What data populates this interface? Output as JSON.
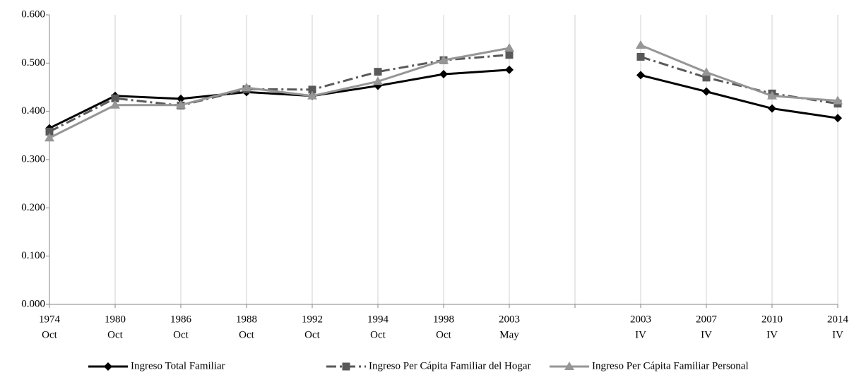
{
  "chart_data": {
    "type": "line",
    "categories": [
      [
        "1974",
        "Oct"
      ],
      [
        "1980",
        "Oct"
      ],
      [
        "1986",
        "Oct"
      ],
      [
        "1988",
        "Oct"
      ],
      [
        "1992",
        "Oct"
      ],
      [
        "1994",
        "Oct"
      ],
      [
        "1998",
        "Oct"
      ],
      [
        "2003",
        "May"
      ],
      null,
      [
        "2003",
        "IV"
      ],
      [
        "2007",
        "IV"
      ],
      [
        "2010",
        "IV"
      ],
      [
        "2014",
        "IV"
      ]
    ],
    "series": [
      {
        "name": "Ingreso Total Familiar",
        "color": "#000000",
        "linestyle": "solid",
        "marker": "diamond",
        "values": [
          0.365,
          0.432,
          0.426,
          0.44,
          0.432,
          0.453,
          0.477,
          0.486,
          null,
          0.475,
          0.441,
          0.406,
          0.386
        ]
      },
      {
        "name": "Ingreso Per Cápita Familiar del Hogar",
        "color": "#595959",
        "linestyle": "dashdot",
        "marker": "square",
        "values": [
          0.358,
          0.427,
          0.412,
          0.446,
          0.445,
          0.482,
          0.506,
          0.517,
          null,
          0.513,
          0.47,
          0.437,
          0.416
        ]
      },
      {
        "name": "Ingreso Per Cápita Familiar Personal",
        "color": "#969696",
        "linestyle": "solid",
        "marker": "triangle",
        "values": [
          0.345,
          0.413,
          0.413,
          0.449,
          0.432,
          0.462,
          0.506,
          0.531,
          null,
          0.537,
          0.481,
          0.432,
          0.422
        ]
      }
    ],
    "ylim": [
      0,
      0.6
    ],
    "yticks": [
      {
        "value": 0,
        "label": "0.000"
      },
      {
        "value": 0.1,
        "label": "0.100"
      },
      {
        "value": 0.2,
        "label": "0.200"
      },
      {
        "value": 0.3,
        "label": "0.300"
      },
      {
        "value": 0.4,
        "label": "0.400"
      },
      {
        "value": 0.5,
        "label": "0.500"
      },
      {
        "value": 0.6,
        "label": "0.600"
      }
    ],
    "grid": "vertical",
    "legend": "bottom"
  }
}
